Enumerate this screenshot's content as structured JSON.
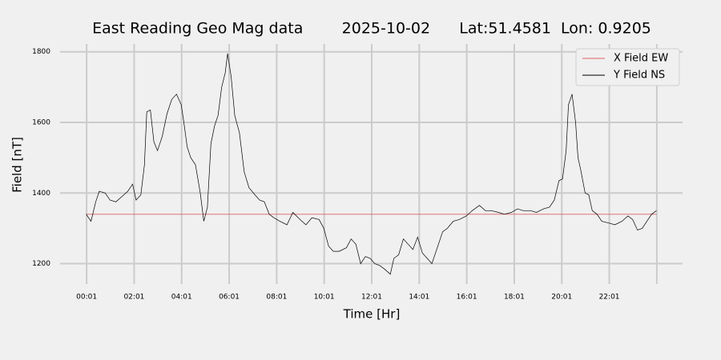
{
  "chart_data": {
    "type": "line",
    "title": "East Reading Geo Mag data        2025-10-02      Lat:51.4581  Lon: 0.9205",
    "x_label": "Time  [Hr]",
    "y_label": "Field  [nT]",
    "xlim": [
      -1.1,
      25.1
    ],
    "ylim": [
      1165,
      1822
    ],
    "xticks": [
      {
        "value": 0.0167,
        "label": "00:01"
      },
      {
        "value": 2.0167,
        "label": "02:01"
      },
      {
        "value": 4.0167,
        "label": "04:01"
      },
      {
        "value": 6.0167,
        "label": "06:01"
      },
      {
        "value": 8.0167,
        "label": "08:01"
      },
      {
        "value": 10.0167,
        "label": "10:01"
      },
      {
        "value": 12.0167,
        "label": "12:01"
      },
      {
        "value": 14.0167,
        "label": "14:01"
      },
      {
        "value": 16.0167,
        "label": "16:01"
      },
      {
        "value": 18.0167,
        "label": "18:01"
      },
      {
        "value": 20.0167,
        "label": "20:01"
      },
      {
        "value": 22.0167,
        "label": "22:01"
      },
      {
        "value": 24.0167,
        "label": null
      }
    ],
    "yticks": [
      1200,
      1400,
      1600,
      1800
    ],
    "grid": true,
    "legend": "upper right",
    "series": [
      {
        "name": "X Field EW",
        "color": "#e06060",
        "x": [
          0,
          24
        ],
        "values": [
          1340,
          1340
        ]
      },
      {
        "name": "Y Field NS",
        "color": "#000000",
        "x": [
          0,
          0.2,
          0.4,
          0.55,
          0.8,
          1.0,
          1.25,
          1.5,
          1.75,
          1.95,
          2.1,
          2.3,
          2.45,
          2.55,
          2.7,
          2.85,
          3.0,
          3.2,
          3.4,
          3.6,
          3.8,
          4.0,
          4.1,
          4.25,
          4.4,
          4.6,
          4.8,
          4.95,
          5.1,
          5.25,
          5.4,
          5.55,
          5.7,
          5.85,
          5.95,
          6.1,
          6.25,
          6.45,
          6.65,
          6.85,
          7.1,
          7.3,
          7.5,
          7.7,
          7.9,
          8.15,
          8.45,
          8.7,
          9.0,
          9.25,
          9.5,
          9.8,
          10.0,
          10.2,
          10.4,
          10.65,
          10.95,
          11.15,
          11.35,
          11.55,
          11.75,
          11.95,
          12.15,
          12.35,
          12.55,
          12.8,
          12.95,
          13.15,
          13.35,
          13.55,
          13.75,
          13.95,
          14.15,
          14.35,
          14.55,
          14.75,
          15.0,
          15.2,
          15.45,
          15.7,
          16.0,
          16.25,
          16.55,
          16.8,
          17.05,
          17.35,
          17.6,
          17.9,
          18.15,
          18.4,
          18.7,
          18.95,
          19.25,
          19.5,
          19.7,
          19.9,
          20.05,
          20.2,
          20.3,
          20.45,
          20.6,
          20.7,
          20.8,
          21.0,
          21.15,
          21.3,
          21.5,
          21.7,
          22.0,
          22.25,
          22.55,
          22.8,
          23.0,
          23.2,
          23.4,
          23.6,
          23.8,
          24.0
        ],
        "values": [
          1340,
          1320,
          1375,
          1405,
          1400,
          1380,
          1375,
          1390,
          1405,
          1425,
          1380,
          1395,
          1480,
          1630,
          1635,
          1545,
          1520,
          1560,
          1625,
          1665,
          1680,
          1650,
          1605,
          1530,
          1500,
          1480,
          1400,
          1320,
          1360,
          1540,
          1590,
          1620,
          1700,
          1740,
          1795,
          1730,
          1620,
          1570,
          1460,
          1415,
          1395,
          1380,
          1375,
          1340,
          1330,
          1320,
          1310,
          1345,
          1325,
          1310,
          1330,
          1325,
          1300,
          1250,
          1235,
          1235,
          1245,
          1270,
          1255,
          1200,
          1220,
          1215,
          1200,
          1195,
          1185,
          1170,
          1215,
          1225,
          1270,
          1255,
          1240,
          1275,
          1230,
          1215,
          1200,
          1240,
          1290,
          1300,
          1320,
          1325,
          1335,
          1350,
          1365,
          1350,
          1350,
          1345,
          1340,
          1345,
          1355,
          1350,
          1350,
          1345,
          1355,
          1360,
          1380,
          1435,
          1440,
          1520,
          1650,
          1680,
          1600,
          1500,
          1470,
          1400,
          1395,
          1350,
          1340,
          1320,
          1315,
          1310,
          1320,
          1335,
          1325,
          1295,
          1300,
          1320,
          1340,
          1350
        ]
      }
    ]
  }
}
